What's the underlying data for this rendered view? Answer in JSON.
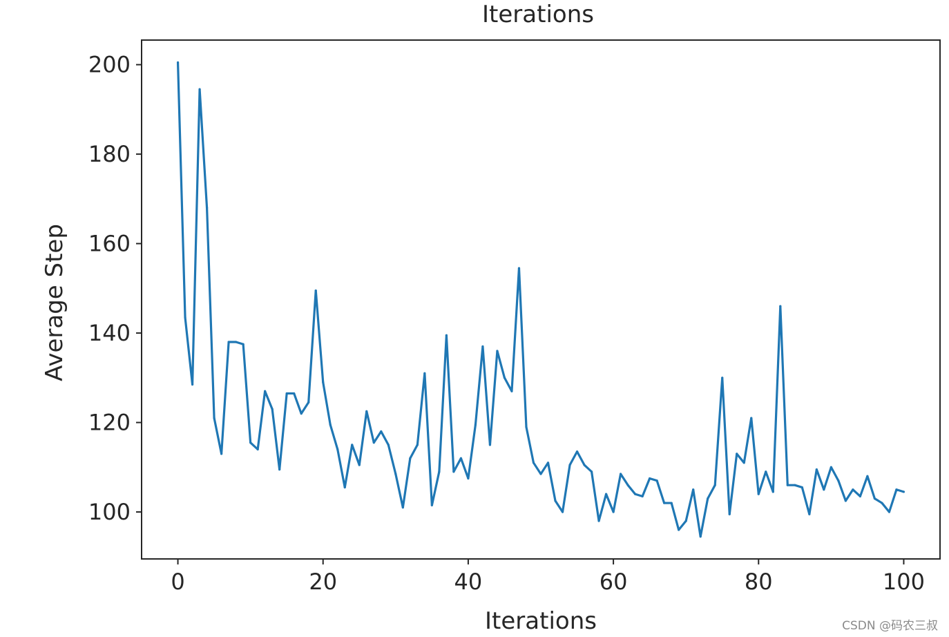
{
  "chart_data": {
    "type": "line",
    "title": "Iterations",
    "xlabel": "Iterations",
    "ylabel": "Average Step",
    "xlim": [
      -5,
      105
    ],
    "ylim": [
      89.5,
      205.5
    ],
    "xticks": [
      0,
      20,
      40,
      60,
      80,
      100
    ],
    "yticks": [
      100,
      120,
      140,
      160,
      180,
      200
    ],
    "grid": false,
    "legend": "none",
    "series": [
      {
        "color": "#1f77b4",
        "x": [
          0,
          1,
          2,
          3,
          4,
          5,
          6,
          7,
          8,
          9,
          10,
          11,
          12,
          13,
          14,
          15,
          16,
          17,
          18,
          19,
          20,
          21,
          22,
          23,
          24,
          25,
          26,
          27,
          28,
          29,
          30,
          31,
          32,
          33,
          34,
          35,
          36,
          37,
          38,
          39,
          40,
          41,
          42,
          43,
          44,
          45,
          46,
          47,
          48,
          49,
          50,
          51,
          52,
          53,
          54,
          55,
          56,
          57,
          58,
          59,
          60,
          61,
          62,
          63,
          64,
          65,
          66,
          67,
          68,
          69,
          70,
          71,
          72,
          73,
          74,
          75,
          76,
          77,
          78,
          79,
          80,
          81,
          82,
          83,
          84,
          85,
          86,
          87,
          88,
          89,
          90,
          91,
          92,
          93,
          94,
          95,
          96,
          97,
          98,
          99,
          100
        ],
        "values": [
          200.5,
          143.5,
          128.5,
          194.5,
          168,
          121,
          113,
          138,
          138,
          137.5,
          115.5,
          114,
          127,
          123,
          109.5,
          126.5,
          126.5,
          122,
          124.5,
          149.5,
          129,
          119.5,
          114,
          105.5,
          115,
          110.5,
          122.5,
          115.5,
          118,
          115,
          108.5,
          101,
          112,
          115,
          131,
          101.5,
          109,
          139.5,
          109,
          112,
          107.5,
          119.5,
          137,
          115,
          136,
          130,
          127,
          154.5,
          119,
          111,
          108.5,
          111,
          102.5,
          100,
          110.5,
          113.5,
          110.5,
          109,
          98,
          104,
          100,
          108.5,
          106,
          104,
          103.5,
          107.5,
          107,
          102,
          102,
          96,
          98,
          105,
          94.5,
          103,
          106,
          130,
          99.5,
          113,
          111,
          121,
          104,
          109,
          104.5,
          146,
          106,
          106,
          105.5,
          99.5,
          109.5,
          105,
          110,
          107,
          102.5,
          105,
          103.5,
          108,
          103,
          102,
          100,
          105,
          104.5
        ]
      }
    ]
  },
  "watermark": "CSDN @码农三叔"
}
